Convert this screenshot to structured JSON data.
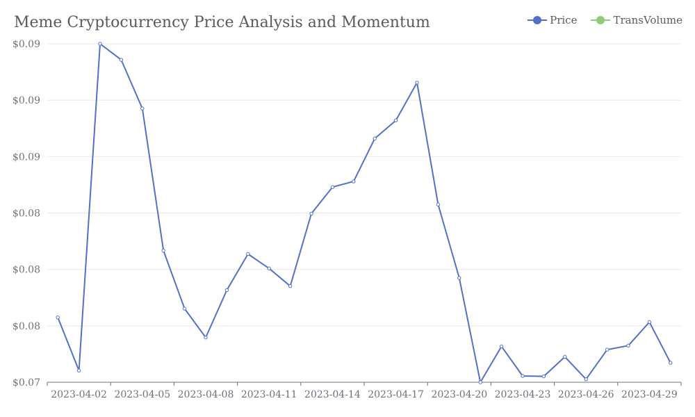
{
  "chart_data": {
    "type": "line",
    "title": "Meme Cryptocurrency Price Analysis and Momentum",
    "xlabel": "",
    "ylabel": "",
    "x": [
      "2023-04-01",
      "2023-04-02",
      "2023-04-03",
      "2023-04-04",
      "2023-04-05",
      "2023-04-06",
      "2023-04-07",
      "2023-04-08",
      "2023-04-09",
      "2023-04-10",
      "2023-04-11",
      "2023-04-12",
      "2023-04-13",
      "2023-04-14",
      "2023-04-15",
      "2023-04-16",
      "2023-04-17",
      "2023-04-18",
      "2023-04-19",
      "2023-04-20",
      "2023-04-21",
      "2023-04-22",
      "2023-04-23",
      "2023-04-24",
      "2023-04-25",
      "2023-04-26",
      "2023-04-27",
      "2023-04-28",
      "2023-04-29",
      "2023-04-30"
    ],
    "x_tick_labels": [
      "2023-04-02",
      "2023-04-05",
      "2023-04-08",
      "2023-04-11",
      "2023-04-14",
      "2023-04-17",
      "2023-04-20",
      "2023-04-23",
      "2023-04-26",
      "2023-04-29"
    ],
    "y_tick_labels": [
      "$0.07",
      "$0.08",
      "$0.08",
      "$0.08",
      "$0.09",
      "$0.09",
      "$0.09"
    ],
    "ylim": [
      0.07,
      0.097
    ],
    "series": [
      {
        "name": "Price",
        "color": "#5470c6",
        "values": [
          0.07517,
          0.07093,
          0.097,
          0.09572,
          0.09184,
          0.0805,
          0.07587,
          0.07357,
          0.07735,
          0.08023,
          0.07908,
          0.07767,
          0.08345,
          0.08557,
          0.08602,
          0.08944,
          0.09089,
          0.0939,
          0.08418,
          0.07832,
          0.07,
          0.07286,
          0.0705,
          0.07047,
          0.07203,
          0.07024,
          0.0726,
          0.07292,
          0.0748,
          0.07155
        ]
      }
    ],
    "legend": [
      {
        "name": "Price",
        "color": "#5470c6"
      },
      {
        "name": "TransVolume",
        "color": "#91cc75"
      }
    ],
    "legend_position": "top-right",
    "grid": true
  }
}
